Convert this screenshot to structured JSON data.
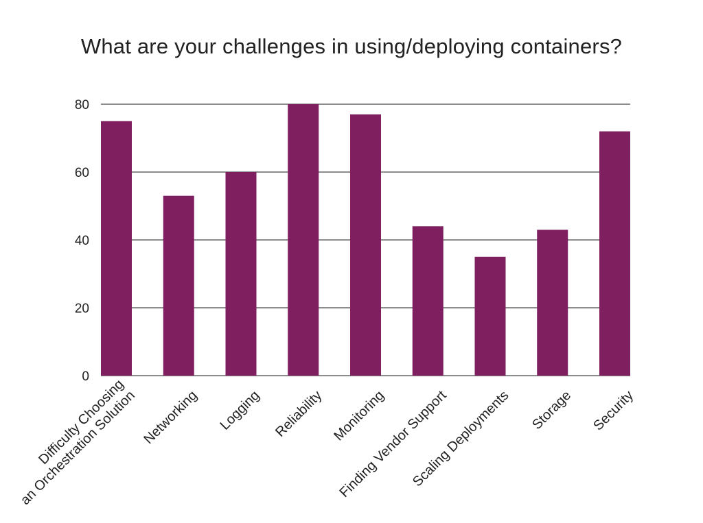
{
  "chart_data": {
    "type": "bar",
    "title": "What are your challenges in using/deploying containers?",
    "xlabel": "",
    "ylabel": "",
    "categories": [
      [
        "Difficulty Choosing",
        "an Orchestration Solution"
      ],
      [
        "Networking"
      ],
      [
        "Logging"
      ],
      [
        "Reliability"
      ],
      [
        "Monitoring"
      ],
      [
        "Finding Vendor Support"
      ],
      [
        "Scaling Deployments"
      ],
      [
        "Storage"
      ],
      [
        "Security"
      ]
    ],
    "values": [
      75,
      53,
      60,
      80,
      77,
      44,
      35,
      43,
      72
    ],
    "ylim": [
      0,
      80
    ],
    "yticks": [
      0,
      20,
      40,
      60,
      80
    ],
    "grid": true,
    "legend": "none",
    "bar_color": "#7f1f5f"
  }
}
